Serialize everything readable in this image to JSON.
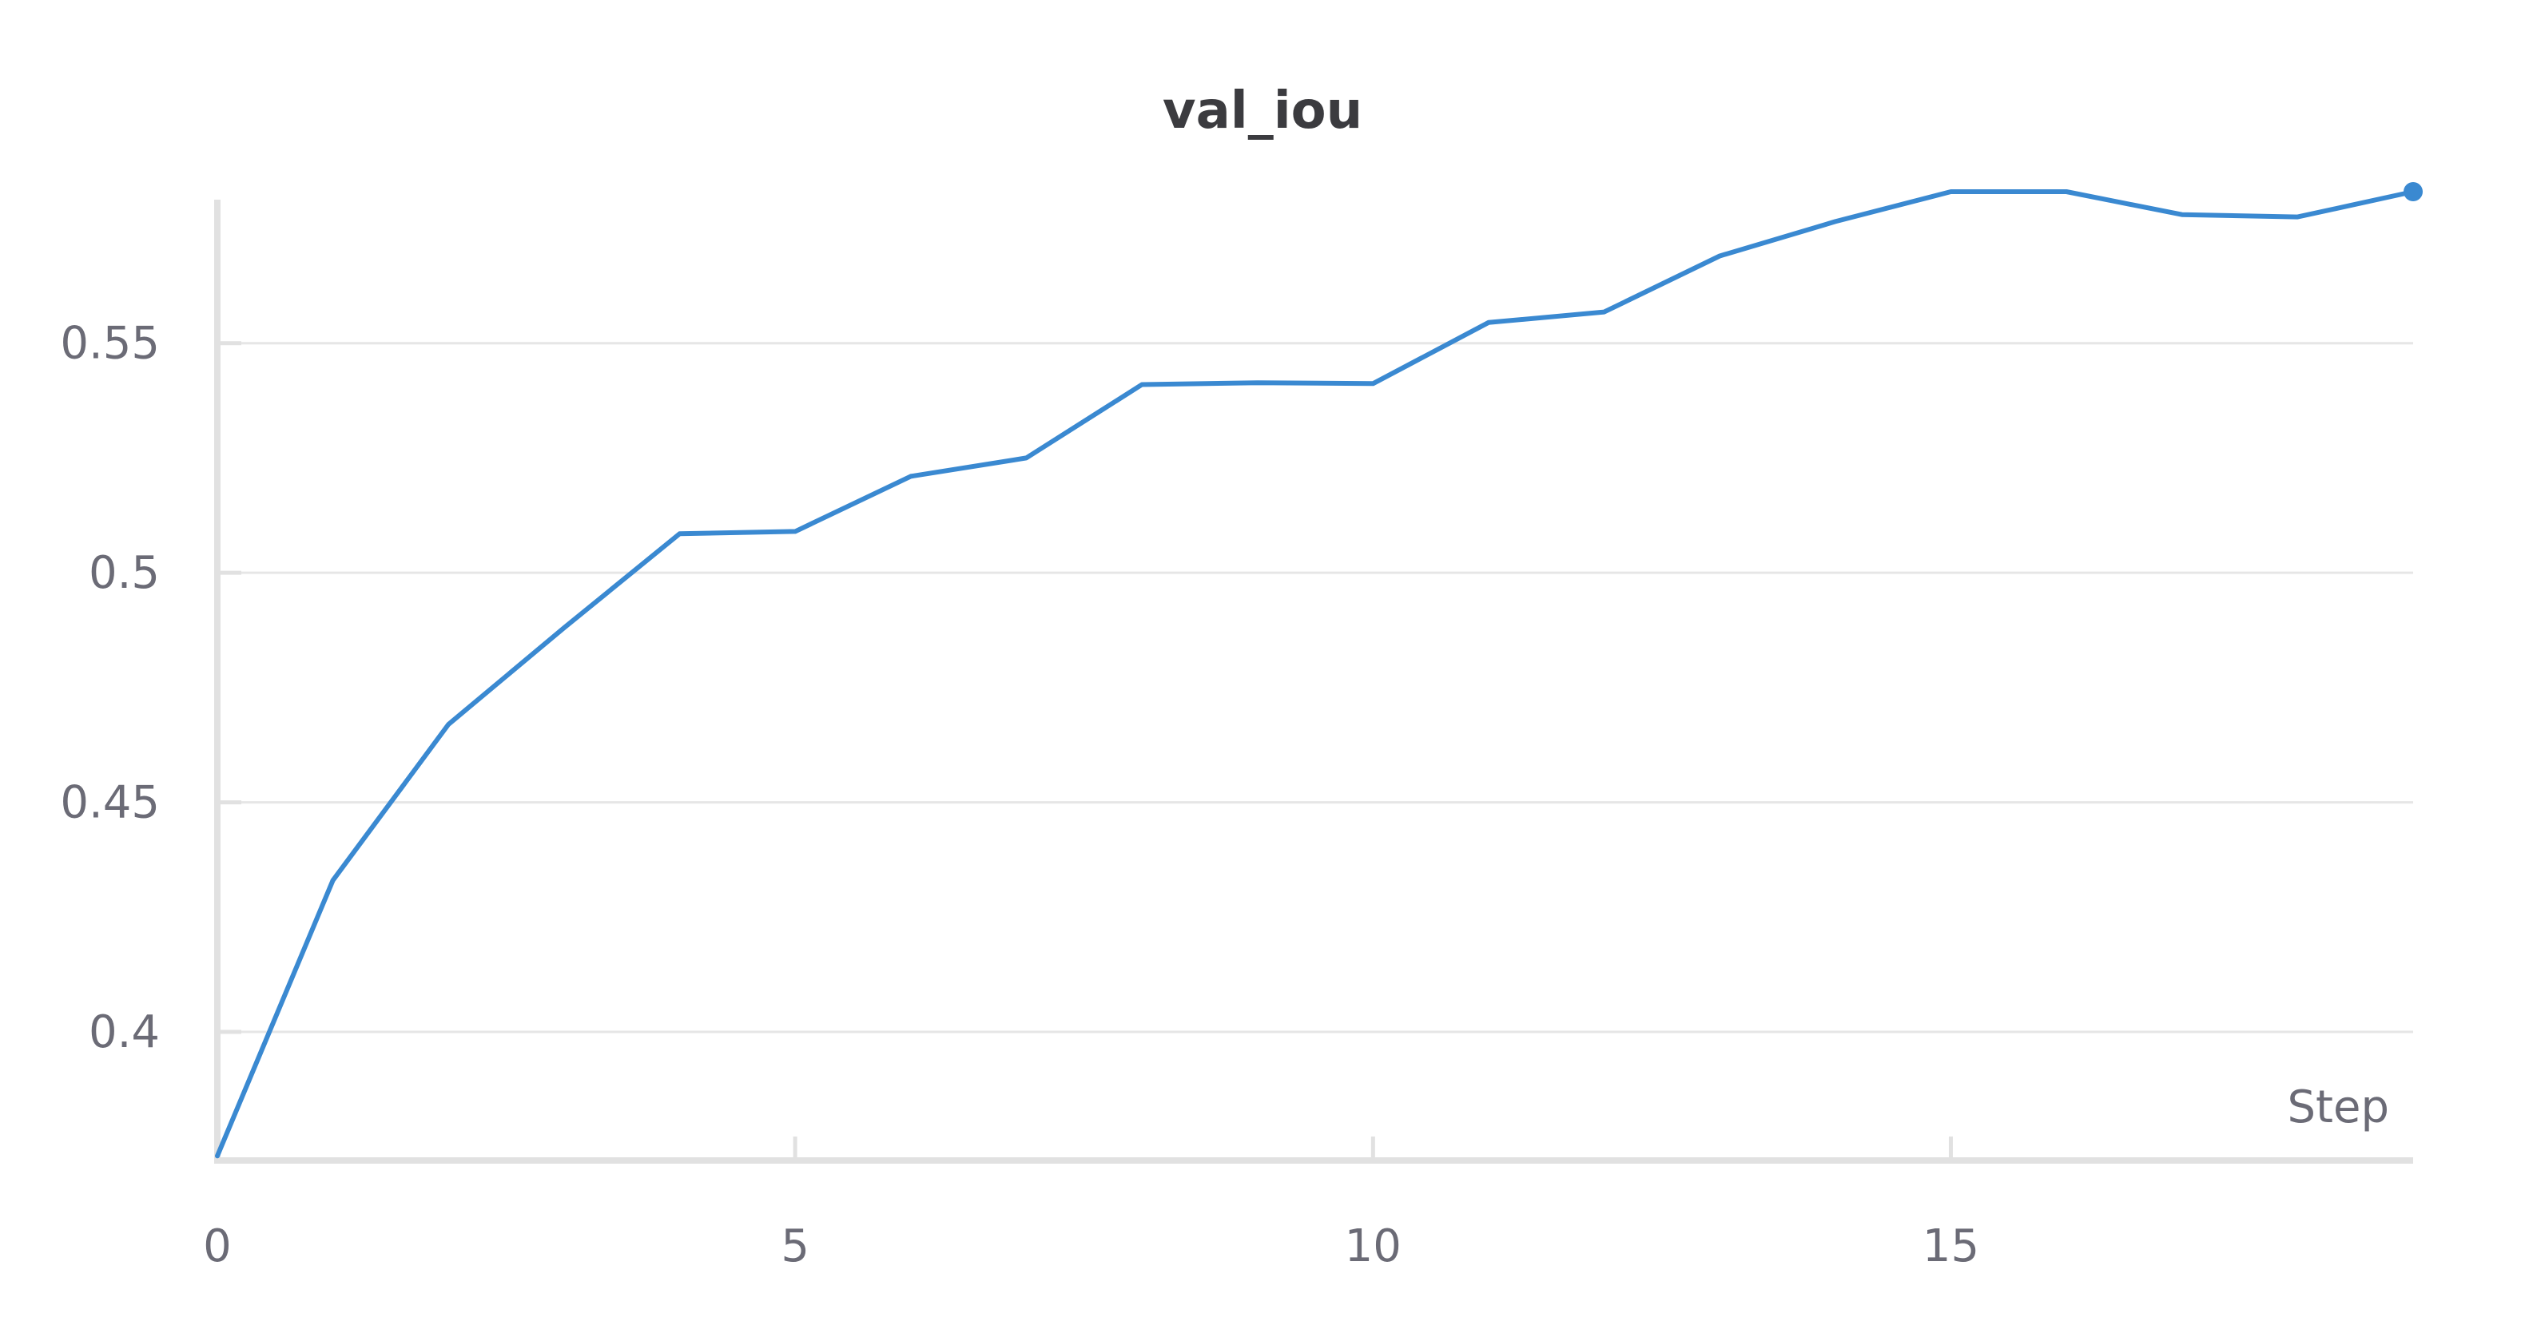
{
  "chart_data": {
    "type": "line",
    "title": "val_iou",
    "xlabel": "Step",
    "ylabel": "",
    "xlim": [
      0,
      19
    ],
    "ylim": [
      0.372,
      0.583
    ],
    "x_ticks": [
      0,
      5,
      10,
      15
    ],
    "x_tick_labels": [
      "0",
      "5",
      "10",
      "15"
    ],
    "y_ticks": [
      0.4,
      0.45,
      0.5,
      0.55
    ],
    "y_tick_labels": [
      "0.4",
      "0.45",
      "0.5",
      "0.55"
    ],
    "grid": true,
    "legend": "none",
    "series": [
      {
        "color": "#3a89d1",
        "x": [
          0,
          1,
          2,
          3,
          4,
          5,
          6,
          7,
          8,
          9,
          10,
          11,
          12,
          13,
          14,
          15,
          16,
          17,
          18,
          19
        ],
        "values": [
          0.373,
          0.433,
          0.467,
          0.488,
          0.5085,
          0.509,
          0.521,
          0.525,
          0.541,
          0.5414,
          0.5412,
          0.5545,
          0.5568,
          0.569,
          0.5765,
          0.583,
          0.583,
          0.578,
          0.5775,
          0.583
        ]
      }
    ]
  }
}
